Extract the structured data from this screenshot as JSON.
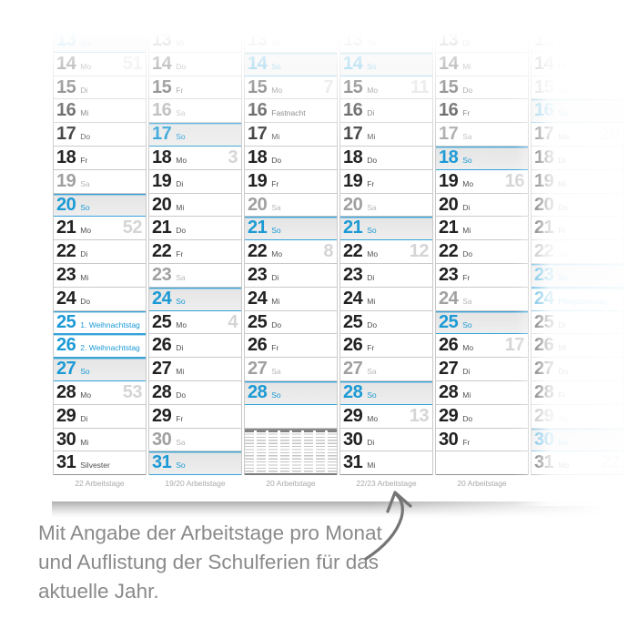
{
  "caption": {
    "line1": "Mit Angabe der Arbeitstage pro Monat",
    "line2": "und Auflistung der Schulferien für das",
    "line3": "aktuelle Jahr."
  },
  "calendar": {
    "months": [
      {
        "footer": "22 Arbeitstage",
        "days": [
          {
            "n": "13",
            "l": "So",
            "t": "so"
          },
          {
            "n": "14",
            "l": "Mo",
            "t": "wd",
            "w": "51"
          },
          {
            "n": "15",
            "l": "Di",
            "t": "wd"
          },
          {
            "n": "16",
            "l": "Mi",
            "t": "wd"
          },
          {
            "n": "17",
            "l": "Do",
            "t": "wd"
          },
          {
            "n": "18",
            "l": "Fr",
            "t": "wd"
          },
          {
            "n": "19",
            "l": "Sa",
            "t": "sa"
          },
          {
            "n": "20",
            "l": "So",
            "t": "so"
          },
          {
            "n": "21",
            "l": "Mo",
            "t": "wd",
            "w": "52"
          },
          {
            "n": "22",
            "l": "Di",
            "t": "wd"
          },
          {
            "n": "23",
            "l": "Mi",
            "t": "wd"
          },
          {
            "n": "24",
            "l": "Do",
            "t": "wd"
          },
          {
            "n": "25",
            "l": "1. Weihnachtstag",
            "t": "hol"
          },
          {
            "n": "26",
            "l": "2. Weihnachtstag",
            "t": "hol"
          },
          {
            "n": "27",
            "l": "So",
            "t": "so"
          },
          {
            "n": "28",
            "l": "Mo",
            "t": "wd",
            "w": "53"
          },
          {
            "n": "29",
            "l": "Di",
            "t": "wd"
          },
          {
            "n": "30",
            "l": "Mi",
            "t": "wd"
          },
          {
            "n": "31",
            "l": "Silvester",
            "t": "wd"
          }
        ],
        "extras": []
      },
      {
        "footer": "19/20 Arbeitstage",
        "days": [
          {
            "n": "13",
            "l": "Mi",
            "t": "wd"
          },
          {
            "n": "14",
            "l": "Do",
            "t": "wd"
          },
          {
            "n": "15",
            "l": "Fr",
            "t": "wd"
          },
          {
            "n": "16",
            "l": "Sa",
            "t": "sa"
          },
          {
            "n": "17",
            "l": "So",
            "t": "so"
          },
          {
            "n": "18",
            "l": "Mo",
            "t": "wd",
            "w": "3"
          },
          {
            "n": "19",
            "l": "Di",
            "t": "wd"
          },
          {
            "n": "20",
            "l": "Mi",
            "t": "wd"
          },
          {
            "n": "21",
            "l": "Do",
            "t": "wd"
          },
          {
            "n": "22",
            "l": "Fr",
            "t": "wd"
          },
          {
            "n": "23",
            "l": "Sa",
            "t": "sa"
          },
          {
            "n": "24",
            "l": "So",
            "t": "so"
          },
          {
            "n": "25",
            "l": "Mo",
            "t": "wd",
            "w": "4"
          },
          {
            "n": "26",
            "l": "Di",
            "t": "wd"
          },
          {
            "n": "27",
            "l": "Mi",
            "t": "wd"
          },
          {
            "n": "28",
            "l": "Do",
            "t": "wd"
          },
          {
            "n": "29",
            "l": "Fr",
            "t": "wd"
          },
          {
            "n": "30",
            "l": "Sa",
            "t": "sa"
          },
          {
            "n": "31",
            "l": "So",
            "t": "so"
          }
        ],
        "extras": []
      },
      {
        "footer": "20 Arbeitstage",
        "days": [
          {
            "n": "13",
            "l": "Sa",
            "t": "sa"
          },
          {
            "n": "14",
            "l": "So",
            "t": "so"
          },
          {
            "n": "15",
            "l": "Mo",
            "t": "wd",
            "w": "7"
          },
          {
            "n": "16",
            "l": "Fastnacht",
            "t": "wd"
          },
          {
            "n": "17",
            "l": "Mi",
            "t": "wd"
          },
          {
            "n": "18",
            "l": "Do",
            "t": "wd"
          },
          {
            "n": "19",
            "l": "Fr",
            "t": "wd"
          },
          {
            "n": "20",
            "l": "Sa",
            "t": "sa"
          },
          {
            "n": "21",
            "l": "So",
            "t": "so"
          },
          {
            "n": "22",
            "l": "Mo",
            "t": "wd",
            "w": "8"
          },
          {
            "n": "23",
            "l": "Di",
            "t": "wd"
          },
          {
            "n": "24",
            "l": "Mi",
            "t": "wd"
          },
          {
            "n": "25",
            "l": "Do",
            "t": "wd"
          },
          {
            "n": "26",
            "l": "Fr",
            "t": "wd"
          },
          {
            "n": "27",
            "l": "Sa",
            "t": "sa"
          },
          {
            "n": "28",
            "l": "So",
            "t": "so"
          }
        ],
        "extras": [
          "empty",
          "ferien"
        ]
      },
      {
        "footer": "22/23 Arbeitstage",
        "days": [
          {
            "n": "13",
            "l": "Sa",
            "t": "sa"
          },
          {
            "n": "14",
            "l": "So",
            "t": "so"
          },
          {
            "n": "15",
            "l": "Mo",
            "t": "wd",
            "w": "11"
          },
          {
            "n": "16",
            "l": "Di",
            "t": "wd"
          },
          {
            "n": "17",
            "l": "Mi",
            "t": "wd"
          },
          {
            "n": "18",
            "l": "Do",
            "t": "wd"
          },
          {
            "n": "19",
            "l": "Fr",
            "t": "wd"
          },
          {
            "n": "20",
            "l": "Sa",
            "t": "sa"
          },
          {
            "n": "21",
            "l": "So",
            "t": "so"
          },
          {
            "n": "22",
            "l": "Mo",
            "t": "wd",
            "w": "12"
          },
          {
            "n": "23",
            "l": "Di",
            "t": "wd"
          },
          {
            "n": "24",
            "l": "Mi",
            "t": "wd"
          },
          {
            "n": "25",
            "l": "Do",
            "t": "wd"
          },
          {
            "n": "26",
            "l": "Fr",
            "t": "wd"
          },
          {
            "n": "27",
            "l": "Sa",
            "t": "sa"
          },
          {
            "n": "28",
            "l": "So",
            "t": "so"
          },
          {
            "n": "29",
            "l": "Mo",
            "t": "wd",
            "w": "13"
          },
          {
            "n": "30",
            "l": "Di",
            "t": "wd"
          },
          {
            "n": "31",
            "l": "Mi",
            "t": "wd"
          }
        ],
        "extras": []
      },
      {
        "footer": "20 Arbeitstage",
        "days": [
          {
            "n": "13",
            "l": "Di",
            "t": "wd"
          },
          {
            "n": "14",
            "l": "Mi",
            "t": "wd"
          },
          {
            "n": "15",
            "l": "Do",
            "t": "wd"
          },
          {
            "n": "16",
            "l": "Fr",
            "t": "wd"
          },
          {
            "n": "17",
            "l": "Sa",
            "t": "sa"
          },
          {
            "n": "18",
            "l": "So",
            "t": "so"
          },
          {
            "n": "19",
            "l": "Mo",
            "t": "wd",
            "w": "16"
          },
          {
            "n": "20",
            "l": "Di",
            "t": "wd"
          },
          {
            "n": "21",
            "l": "Mi",
            "t": "wd"
          },
          {
            "n": "22",
            "l": "Do",
            "t": "wd"
          },
          {
            "n": "23",
            "l": "Fr",
            "t": "wd"
          },
          {
            "n": "24",
            "l": "Sa",
            "t": "sa"
          },
          {
            "n": "25",
            "l": "So",
            "t": "so"
          },
          {
            "n": "26",
            "l": "Mo",
            "t": "wd",
            "w": "17"
          },
          {
            "n": "27",
            "l": "Di",
            "t": "wd"
          },
          {
            "n": "28",
            "l": "Mi",
            "t": "wd"
          },
          {
            "n": "29",
            "l": "Do",
            "t": "wd"
          },
          {
            "n": "30",
            "l": "Fr",
            "t": "wd"
          }
        ],
        "extras": [
          "empty"
        ]
      },
      {
        "footer": "",
        "days": [
          {
            "n": "13",
            "l": "Do",
            "t": "wd"
          },
          {
            "n": "14",
            "l": "Fr",
            "t": "wd"
          },
          {
            "n": "15",
            "l": "Sa",
            "t": "sa"
          },
          {
            "n": "16",
            "l": "So",
            "t": "so"
          },
          {
            "n": "17",
            "l": "Mo",
            "t": "wd",
            "w": "20"
          },
          {
            "n": "18",
            "l": "Di",
            "t": "wd"
          },
          {
            "n": "19",
            "l": "Mi",
            "t": "wd"
          },
          {
            "n": "20",
            "l": "Do",
            "t": "wd"
          },
          {
            "n": "21",
            "l": "Fr",
            "t": "wd"
          },
          {
            "n": "22",
            "l": "Sa",
            "t": "sa"
          },
          {
            "n": "23",
            "l": "So",
            "t": "so"
          },
          {
            "n": "24",
            "l": "Pfingstmontag",
            "t": "hol"
          },
          {
            "n": "25",
            "l": "Di",
            "t": "wd"
          },
          {
            "n": "26",
            "l": "Mi",
            "t": "wd"
          },
          {
            "n": "27",
            "l": "Do",
            "t": "wd"
          },
          {
            "n": "28",
            "l": "Fr",
            "t": "wd"
          },
          {
            "n": "29",
            "l": "Sa",
            "t": "sa"
          },
          {
            "n": "30",
            "l": "So",
            "t": "so"
          },
          {
            "n": "31",
            "l": "Mo",
            "t": "wd",
            "w": "22"
          }
        ],
        "extras": []
      }
    ]
  },
  "colors": {
    "accent": "#1b9ad5",
    "accent_border": "#35a2d8",
    "num": "#222222",
    "lbl": "#4f4f4f",
    "sat": "#a0a0a0",
    "sat_lbl": "#b6b6b6",
    "wk": "#d5d5d5",
    "border": "#c9c9c9",
    "footer": "#a9a9a9",
    "caption": "#8a8a8a",
    "arrow": "#757575"
  }
}
